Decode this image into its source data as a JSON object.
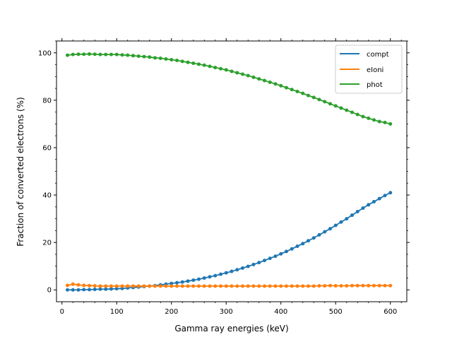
{
  "chart_data": {
    "type": "line",
    "title": "",
    "xlabel": "Gamma ray energies (keV)",
    "ylabel": "Fraction of converted electrons (%)",
    "xlim": [
      -10,
      630
    ],
    "ylim": [
      -5,
      105
    ],
    "xticks": [
      0,
      100,
      200,
      300,
      400,
      500,
      600
    ],
    "yticks": [
      0,
      20,
      40,
      60,
      80,
      100
    ],
    "grid": false,
    "legend_position": "top-right",
    "markers": true,
    "x": [
      10,
      20,
      30,
      40,
      50,
      60,
      70,
      80,
      90,
      100,
      110,
      120,
      130,
      140,
      150,
      160,
      170,
      180,
      190,
      200,
      210,
      220,
      230,
      240,
      250,
      260,
      270,
      280,
      290,
      300,
      310,
      320,
      330,
      340,
      350,
      360,
      370,
      380,
      390,
      400,
      410,
      420,
      430,
      440,
      450,
      460,
      470,
      480,
      490,
      500,
      510,
      520,
      530,
      540,
      550,
      560,
      570,
      580,
      590,
      600
    ],
    "series": [
      {
        "name": "compt",
        "color": "#1f77b4",
        "values": [
          0.0,
          0.0,
          0.0,
          0.1,
          0.1,
          0.2,
          0.3,
          0.3,
          0.4,
          0.5,
          0.6,
          0.8,
          1.0,
          1.2,
          1.4,
          1.6,
          1.8,
          2.1,
          2.4,
          2.7,
          3.0,
          3.3,
          3.7,
          4.1,
          4.5,
          5.0,
          5.5,
          6.0,
          6.6,
          7.2,
          7.8,
          8.5,
          9.2,
          9.9,
          10.7,
          11.5,
          12.4,
          13.3,
          14.2,
          15.2,
          16.2,
          17.3,
          18.4,
          19.5,
          20.7,
          21.9,
          23.2,
          24.5,
          25.8,
          27.2,
          28.6,
          30.0,
          31.5,
          33.0,
          34.5,
          35.9,
          37.2,
          38.5,
          39.8,
          41.0
        ]
      },
      {
        "name": "eIoni",
        "color": "#ff7f0e",
        "values": [
          1.9,
          2.4,
          2.1,
          1.9,
          1.8,
          1.7,
          1.6,
          1.6,
          1.6,
          1.6,
          1.6,
          1.6,
          1.6,
          1.6,
          1.6,
          1.6,
          1.6,
          1.6,
          1.6,
          1.6,
          1.6,
          1.6,
          1.6,
          1.6,
          1.6,
          1.6,
          1.6,
          1.6,
          1.6,
          1.6,
          1.6,
          1.6,
          1.6,
          1.6,
          1.6,
          1.6,
          1.6,
          1.6,
          1.6,
          1.6,
          1.6,
          1.6,
          1.6,
          1.6,
          1.6,
          1.6,
          1.7,
          1.7,
          1.8,
          1.7,
          1.7,
          1.7,
          1.8,
          1.8,
          1.8,
          1.8,
          1.8,
          1.8,
          1.8,
          1.8
        ]
      },
      {
        "name": "phot",
        "color": "#2ca02c",
        "values": [
          99.0,
          99.3,
          99.4,
          99.4,
          99.5,
          99.4,
          99.3,
          99.3,
          99.3,
          99.3,
          99.1,
          99.0,
          98.8,
          98.6,
          98.4,
          98.2,
          97.9,
          97.7,
          97.4,
          97.1,
          96.8,
          96.4,
          96.0,
          95.6,
          95.2,
          94.8,
          94.3,
          93.8,
          93.3,
          92.8,
          92.2,
          91.6,
          91.0,
          90.4,
          89.7,
          89.0,
          88.3,
          87.6,
          86.9,
          86.1,
          85.3,
          84.5,
          83.7,
          82.9,
          82.0,
          81.2,
          80.3,
          79.4,
          78.5,
          77.6,
          76.7,
          75.8,
          74.9,
          74.0,
          73.1,
          72.4,
          71.7,
          71.0,
          70.6,
          70.0
        ]
      }
    ]
  }
}
